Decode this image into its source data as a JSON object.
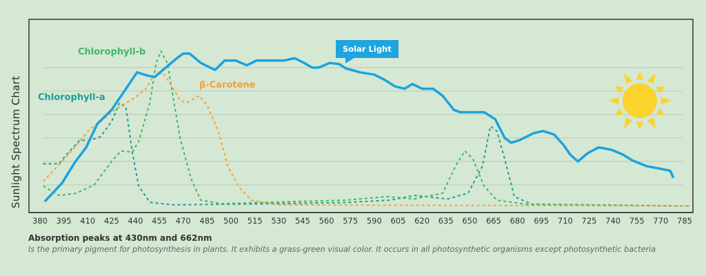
{
  "chart_data": {
    "type": "line",
    "title": "",
    "ylabel": "Sunlight Spectrum Chart",
    "xlabel": "",
    "xlim": [
      380,
      785
    ],
    "ylim": [
      0,
      7
    ],
    "grid": true,
    "xticks": [
      380,
      395,
      410,
      425,
      440,
      455,
      470,
      485,
      500,
      515,
      530,
      545,
      560,
      575,
      590,
      605,
      620,
      635,
      650,
      665,
      680,
      695,
      710,
      725,
      740,
      755,
      770,
      785
    ],
    "series": [
      {
        "name": "Solar Light",
        "color": "#1ba3dd",
        "style": "solid",
        "x": [
          383,
          394,
          402,
          409,
          416,
          425,
          434,
          441,
          448,
          452,
          459,
          466,
          470,
          474,
          481,
          490,
          496,
          503,
          510,
          516,
          525,
          533,
          540,
          546,
          551,
          555,
          562,
          568,
          572,
          581,
          590,
          596,
          603,
          609,
          614,
          620,
          627,
          633,
          640,
          644,
          659,
          666,
          672,
          676,
          681,
          690,
          696,
          703,
          709,
          713,
          718,
          724,
          731,
          739,
          746,
          752,
          761,
          769,
          776,
          778
        ],
        "y": [
          0.29,
          1.09,
          1.97,
          2.6,
          3.6,
          4.2,
          5.1,
          5.8,
          5.65,
          5.6,
          6.0,
          6.4,
          6.6,
          6.6,
          6.2,
          5.9,
          6.3,
          6.3,
          6.1,
          6.3,
          6.3,
          6.3,
          6.4,
          6.2,
          6.0,
          6.0,
          6.2,
          6.15,
          5.97,
          5.8,
          5.7,
          5.5,
          5.2,
          5.1,
          5.3,
          5.1,
          5.1,
          4.8,
          4.2,
          4.1,
          4.1,
          3.8,
          3.0,
          2.8,
          2.9,
          3.2,
          3.3,
          3.15,
          2.7,
          2.3,
          2.0,
          2.35,
          2.6,
          2.5,
          2.3,
          2.05,
          1.8,
          1.7,
          1.6,
          1.3
        ]
      },
      {
        "name": "Chlorophyll-a",
        "color": "#1f9c98",
        "style": "dashed",
        "x": [
          382,
          392,
          398,
          405,
          411,
          418,
          425,
          430,
          434,
          438,
          442,
          449,
          464,
          529,
          572,
          600,
          615,
          623,
          636,
          649,
          658,
          663,
          667,
          672,
          678,
          689,
          788
        ],
        "y": [
          1.9,
          1.9,
          2.4,
          2.9,
          2.9,
          3.05,
          3.7,
          4.5,
          4.3,
          2.4,
          0.95,
          0.26,
          0.15,
          0.2,
          0.25,
          0.35,
          0.55,
          0.5,
          0.4,
          0.65,
          1.8,
          3.5,
          3.3,
          2.1,
          0.5,
          0.18,
          0.1
        ]
      },
      {
        "name": "Chlorophyll-b",
        "color": "#3db76a",
        "style": "dashed",
        "x": [
          382,
          392,
          403,
          414,
          425,
          431,
          438,
          442,
          449,
          453,
          456,
          460,
          464,
          468,
          475,
          481,
          494,
          529,
          572,
          598,
          615,
          633,
          641,
          647,
          652,
          659,
          667,
          685,
          788
        ],
        "y": [
          0.95,
          0.55,
          0.65,
          1.0,
          2.0,
          2.45,
          2.4,
          2.85,
          4.5,
          6.2,
          6.7,
          6.2,
          4.6,
          3.0,
          1.25,
          0.35,
          0.2,
          0.27,
          0.35,
          0.5,
          0.4,
          0.65,
          1.8,
          2.45,
          2.1,
          0.95,
          0.35,
          0.18,
          0.1
        ]
      },
      {
        "name": "β-Carotene",
        "color": "#f2a23a",
        "style": "dashed",
        "x": [
          382,
          394,
          403,
          411,
          420,
          428,
          437,
          446,
          451,
          457,
          463,
          468,
          472,
          480,
          485,
          492,
          498,
          505,
          513,
          529,
          788
        ],
        "y": [
          1.15,
          2.0,
          2.7,
          3.35,
          3.8,
          4.25,
          4.6,
          5.05,
          5.6,
          5.8,
          5.2,
          4.6,
          4.5,
          4.8,
          4.4,
          3.3,
          1.8,
          0.9,
          0.35,
          0.15,
          0.1
        ]
      }
    ]
  },
  "caption": {
    "title": "Absorption peaks at 430nm and 662nm",
    "description": "Is the primary pigment for photosynthesis in plants. It exhibits a grass-green visual color. It occurs in all  photosynthetic organisms except photosynthetic bacteria"
  },
  "icons": {
    "sun": "sun-icon"
  }
}
